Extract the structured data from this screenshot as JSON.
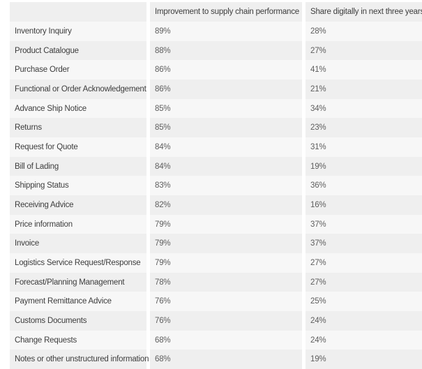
{
  "chart_data": {
    "type": "table",
    "columns": [
      "",
      "Improvement to supply chain performance",
      "Share digitally in next three years"
    ],
    "rows": [
      {
        "label": "Inventory Inquiry",
        "improvement": "89%",
        "share": "28%"
      },
      {
        "label": "Product Catalogue",
        "improvement": "88%",
        "share": "27%"
      },
      {
        "label": "Purchase Order",
        "improvement": "86%",
        "share": "41%"
      },
      {
        "label": "Functional or Order Acknowledgement",
        "improvement": "86%",
        "share": "21%"
      },
      {
        "label": "Advance Ship Notice",
        "improvement": "85%",
        "share": "34%"
      },
      {
        "label": "Returns",
        "improvement": "85%",
        "share": "23%"
      },
      {
        "label": "Request for Quote",
        "improvement": "84%",
        "share": "31%"
      },
      {
        "label": "Bill of Lading",
        "improvement": "84%",
        "share": "19%"
      },
      {
        "label": "Shipping Status",
        "improvement": "83%",
        "share": "36%"
      },
      {
        "label": "Receiving Advice",
        "improvement": "82%",
        "share": "16%"
      },
      {
        "label": "Price information",
        "improvement": "79%",
        "share": "37%"
      },
      {
        "label": "Invoice",
        "improvement": "79%",
        "share": "37%"
      },
      {
        "label": "Logistics Service Request/Response",
        "improvement": "79%",
        "share": "27%"
      },
      {
        "label": "Forecast/Planning Management",
        "improvement": "78%",
        "share": "27%"
      },
      {
        "label": "Payment Remittance Advice",
        "improvement": "76%",
        "share": "25%"
      },
      {
        "label": "Customs Documents",
        "improvement": "76%",
        "share": "24%"
      },
      {
        "label": "Change Requests",
        "improvement": "68%",
        "share": "24%"
      },
      {
        "label": "Notes or other unstructured information",
        "improvement": "68%",
        "share": "19%"
      }
    ]
  },
  "colors": {
    "header_bg": "#efefef",
    "row_stripe_bg": "#efefef",
    "row_light_bg": "#f7f7f7",
    "label_text": "#3d3d3d",
    "value_text": "#5e5e5e"
  }
}
